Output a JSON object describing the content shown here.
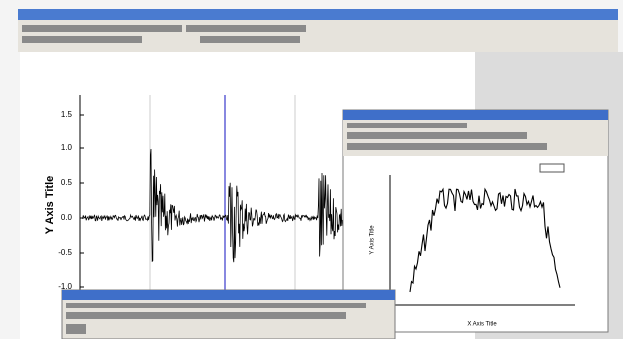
{
  "main_graph": {
    "y_axis_title": "Y Axis Title",
    "y_tick_labels": [
      "1.5",
      "1.0",
      "0.5",
      "0.0",
      "-0.5",
      "-1.0"
    ]
  },
  "inset_graph": {
    "y_axis_title": "Y Axis Title",
    "x_axis_title": "X Axis Title"
  }
}
